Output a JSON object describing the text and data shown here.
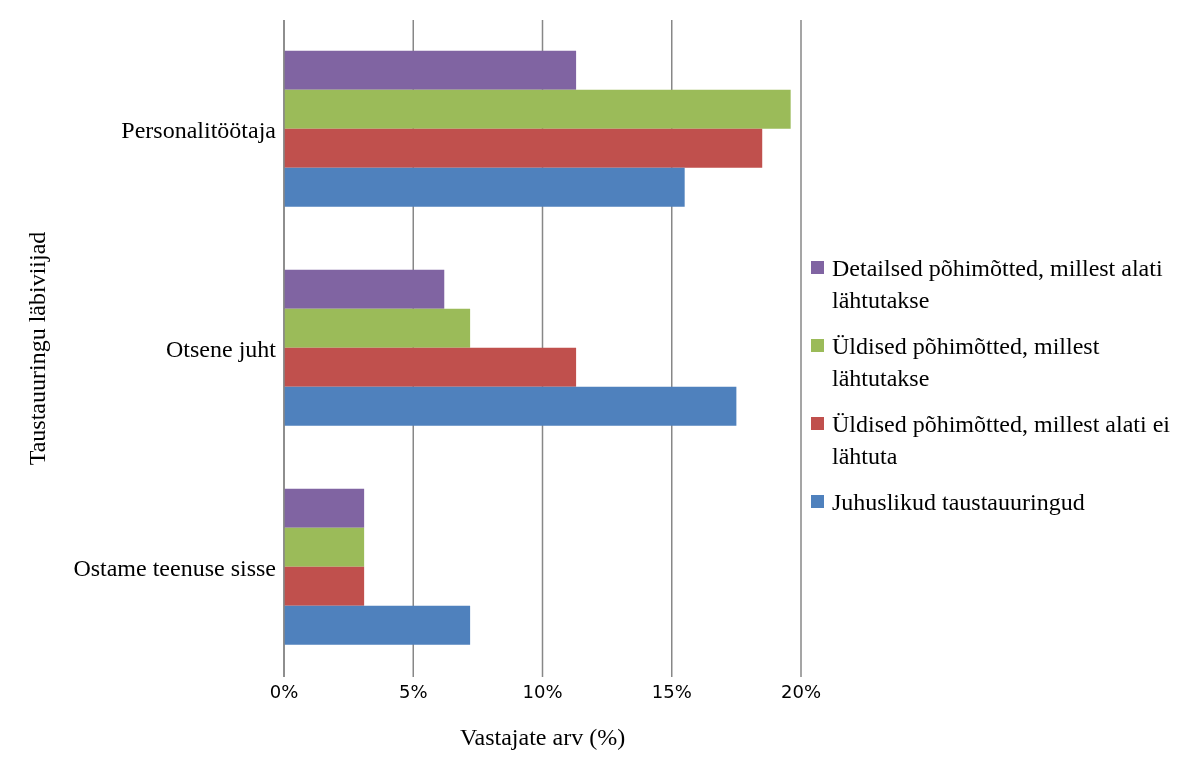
{
  "chart_data": {
    "type": "bar",
    "orientation": "horizontal",
    "xlabel": "Vastajate arv (%)",
    "ylabel": "Taustauuringu läbiviijad",
    "categories": [
      "Personalitöötaja",
      "Otsene juht",
      "Ostame teenuse sisse"
    ],
    "series": [
      {
        "name": "Detailsed põhimõtted, millest alati lähtutakse",
        "color": "#8064a2",
        "values": [
          11.3,
          6.2,
          3.1
        ]
      },
      {
        "name": "Üldised põhimõtted, millest lähtutakse",
        "color": "#9bbb59",
        "values": [
          19.6,
          7.2,
          3.1
        ]
      },
      {
        "name": "Üldised põhimõtted, millest alati ei lähtuta",
        "color": "#c0504d",
        "values": [
          18.5,
          11.3,
          3.1
        ]
      },
      {
        "name": "Juhuslikud taustauuringud",
        "color": "#4f81bd",
        "values": [
          15.5,
          17.5,
          7.2
        ]
      }
    ],
    "xlim": [
      0,
      20
    ],
    "xticks": [
      {
        "value": 0,
        "label": "0%"
      },
      {
        "value": 5,
        "label": "5%"
      },
      {
        "value": 10,
        "label": "10%"
      },
      {
        "value": 15,
        "label": "15%"
      },
      {
        "value": 20,
        "label": "20%"
      }
    ],
    "grid": "x",
    "legend": "right"
  }
}
